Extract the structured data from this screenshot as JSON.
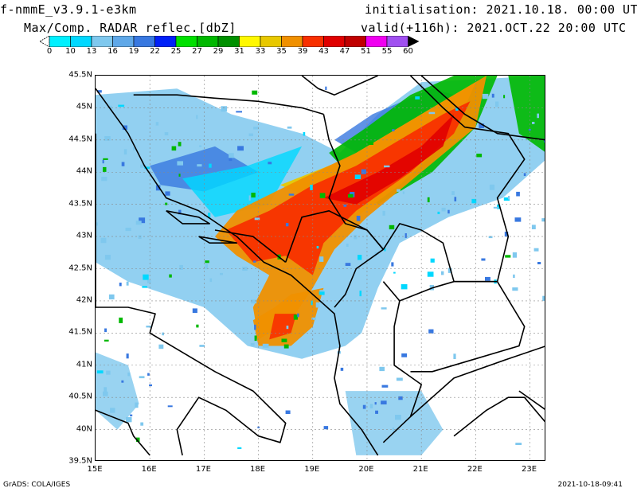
{
  "header": {
    "model": "f-nmmE_v3.9.1-e3km",
    "product": "Max/Comp. RADAR reflec.[dbZ]",
    "initialisation": "initialisation: 2021.10.18. 00:00 UTC",
    "valid": "valid(+116h): 2021.OCT.22 20:00 UTC"
  },
  "colorbar": {
    "labels": [
      "0",
      "10",
      "13",
      "16",
      "19",
      "22",
      "25",
      "27",
      "29",
      "31",
      "33",
      "35",
      "39",
      "43",
      "47",
      "51",
      "55",
      "60"
    ],
    "colors": [
      "#00f0ff",
      "#00d8ff",
      "#7fc8ee",
      "#5fa8e8",
      "#3878e0",
      "#0020f8",
      "#00e000",
      "#00b800",
      "#009000",
      "#fff800",
      "#e8c800",
      "#f09000",
      "#f83000",
      "#e00000",
      "#c00000",
      "#f000f0",
      "#a050f0"
    ]
  },
  "map": {
    "lat_labels": [
      "45.5N",
      "45N",
      "44.5N",
      "44N",
      "43.5N",
      "43N",
      "42.5N",
      "42N",
      "41.5N",
      "41N",
      "40.5N",
      "40N",
      "39.5N"
    ],
    "lon_labels": [
      "15E",
      "16E",
      "17E",
      "18E",
      "19E",
      "20E",
      "21E",
      "22E",
      "23E"
    ],
    "extent": {
      "lon_min": 15.0,
      "lon_max": 23.3,
      "lat_min": 39.5,
      "lat_max": 45.5
    },
    "radar_colors": {
      "light": "#7fc8ee",
      "mid": "#3878e0",
      "cyan": "#00d8ff",
      "green": "#00b800",
      "yellow": "#e8c800",
      "orange": "#f09000",
      "red": "#f83000",
      "darkred": "#e00000"
    }
  },
  "footer": {
    "left": "GrADS: COLA/IGES",
    "right": "2021-10-18-09:41"
  }
}
